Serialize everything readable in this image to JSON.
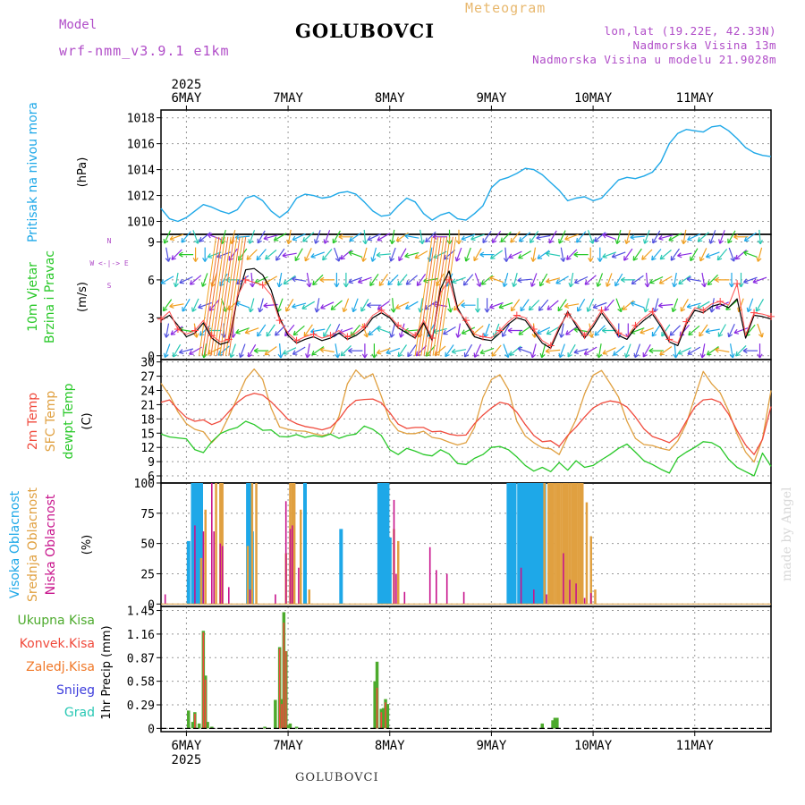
{
  "header": {
    "model_label": "Model",
    "model_run": "wrf-nmm_v3.9.1 e1km",
    "station": "GOLUBOVCI",
    "meteogram": "Meteogram",
    "coords": "lon,lat (19.22E, 42.33N)",
    "altitude": "Nadmorska Visina 13m",
    "model_altitude": "Nadmorska Visina u modelu 21.9028m"
  },
  "footer": {
    "station": "GOLUBOVCI",
    "made_by": "made by Angel"
  },
  "axis": {
    "year": "2025",
    "days": [
      "6MAY",
      "7MAY",
      "8MAY",
      "9MAY",
      "10MAY",
      "11MAY"
    ]
  },
  "colors": {
    "pressure": "#1ea8e8",
    "temp2m": "#f04a3c",
    "sfc_temp": "#e0a040",
    "dewpt": "#28c828",
    "high_cloud": "#1ea8e8",
    "mid_cloud": "#e0a040",
    "low_cloud": "#c8148c",
    "total_precip": "#4caa2c",
    "conv_precip": "#f04a3c",
    "frozen_precip": "#f07828",
    "snow": "#3c3cdc",
    "graupel": "#28c8b4",
    "wind_speed": "#000000"
  },
  "chart_data": [
    {
      "type": "line",
      "panel": "pressure",
      "ylabel_lines": [
        "Pritisak na nivou mora"
      ],
      "unit": "(hPa)",
      "ylim": [
        1009,
        1018.6
      ],
      "yticks": [
        "1010",
        "1012",
        "1014",
        "1016",
        "1018"
      ],
      "ytick_values": [
        1010,
        1012,
        1014,
        1016,
        1018
      ],
      "x_hours": [
        0,
        2,
        4,
        6,
        8,
        10,
        12,
        14,
        16,
        18,
        20,
        22,
        24,
        26,
        28,
        30,
        32,
        34,
        36,
        38,
        40,
        42,
        44,
        46,
        48,
        50,
        52,
        54,
        56,
        58,
        60,
        62,
        64,
        66,
        68,
        70,
        72,
        74,
        76,
        78,
        80,
        82,
        84,
        86,
        88,
        90,
        92,
        94,
        96,
        98,
        100,
        102,
        104,
        106,
        108,
        110,
        112,
        114,
        116,
        118,
        120,
        122,
        124,
        126,
        128,
        130,
        132,
        134,
        136,
        138,
        140,
        142,
        144
      ],
      "series": [
        {
          "values": [
            1011.0,
            1010.2,
            1010.0,
            1010.3,
            1010.8,
            1011.3,
            1011.1,
            1010.8,
            1010.6,
            1010.9,
            1011.8,
            1012.0,
            1011.6,
            1010.8,
            1010.3,
            1010.8,
            1011.8,
            1012.1,
            1012.0,
            1011.8,
            1011.9,
            1012.2,
            1012.3,
            1012.1,
            1011.5,
            1010.8,
            1010.4,
            1010.5,
            1011.2,
            1011.8,
            1011.5,
            1010.6,
            1010.1,
            1010.5,
            1010.7,
            1010.2,
            1010.1,
            1010.6,
            1011.2,
            1012.6,
            1013.2,
            1013.4,
            1013.7,
            1014.1,
            1014.0,
            1013.6,
            1013.0,
            1012.4,
            1011.6,
            1011.8,
            1011.9,
            1011.6,
            1011.8,
            1012.5,
            1013.2,
            1013.4,
            1013.3,
            1013.5,
            1013.8,
            1014.6,
            1016.0,
            1016.8,
            1017.1,
            1017.0,
            1016.9,
            1017.3,
            1017.4,
            1017.0,
            1016.4,
            1015.7,
            1015.3,
            1015.1,
            1015.0
          ]
        }
      ]
    },
    {
      "type": "line",
      "panel": "wind",
      "ylabel_lines": [
        "10m Vjetar",
        "Brzina i Pravac"
      ],
      "unit": "(m/s)",
      "compass_lines": [
        "N",
        "W <-|-> E",
        "S"
      ],
      "ylim": [
        -0.3,
        9.6
      ],
      "yticks": [
        "0",
        "3",
        "6",
        "9"
      ],
      "ytick_values": [
        0,
        3,
        6,
        9
      ],
      "x_hours": [
        0,
        2,
        4,
        6,
        8,
        10,
        12,
        14,
        16,
        18,
        20,
        22,
        24,
        26,
        28,
        30,
        32,
        34,
        36,
        38,
        40,
        42,
        44,
        46,
        48,
        50,
        52,
        54,
        56,
        58,
        60,
        62,
        64,
        66,
        68,
        70,
        72,
        74,
        76,
        78,
        80,
        82,
        84,
        86,
        88,
        90,
        92,
        94,
        96,
        98,
        100,
        102,
        104,
        106,
        108,
        110,
        112,
        114,
        116,
        118,
        120,
        122,
        124,
        126,
        128,
        130,
        132,
        134,
        136,
        138,
        140,
        142,
        144
      ],
      "series": [
        {
          "values": [
            2.8,
            3.2,
            2.4,
            1.5,
            1.8,
            2.6,
            1.4,
            0.9,
            1.1,
            4.5,
            6.8,
            6.9,
            6.4,
            5.2,
            3.0,
            1.6,
            1.0,
            1.3,
            1.5,
            1.2,
            1.4,
            1.8,
            1.3,
            1.6,
            2.1,
            3.0,
            3.4,
            3.0,
            2.2,
            1.8,
            1.4,
            2.6,
            1.2,
            5.3,
            6.7,
            3.8,
            2.6,
            1.5,
            1.3,
            1.2,
            1.8,
            2.5,
            3.0,
            2.8,
            1.9,
            1.0,
            0.6,
            2.1,
            3.5,
            2.4,
            1.4,
            2.3,
            3.4,
            2.5,
            1.6,
            1.3,
            2.2,
            2.8,
            3.3,
            2.3,
            1.1,
            0.8,
            2.5,
            3.6,
            3.4,
            3.9,
            4.1,
            3.8,
            4.5,
            1.4,
            3.2,
            3.1,
            2.9
          ]
        },
        {
          "values": [
            2.9,
            3.5,
            2.1,
            1.7,
            2.0,
            2.8,
            1.6,
            1.1,
            1.3,
            4.7,
            6.0,
            5.8,
            5.6,
            4.8,
            2.8,
            1.8,
            1.2,
            1.5,
            1.7,
            1.4,
            1.6,
            2.0,
            1.5,
            1.8,
            2.3,
            3.2,
            3.6,
            3.1,
            2.4,
            2.0,
            1.6,
            2.8,
            1.4,
            5.0,
            6.0,
            3.6,
            2.8,
            1.7,
            1.5,
            1.4,
            2.0,
            2.7,
            3.2,
            3.0,
            2.1,
            1.2,
            0.8,
            2.3,
            3.3,
            2.6,
            1.6,
            2.5,
            3.6,
            2.7,
            1.8,
            1.5,
            2.4,
            3.0,
            3.5,
            2.5,
            1.3,
            1.0,
            2.7,
            3.8,
            3.6,
            4.1,
            4.3,
            4.0,
            5.7,
            1.6,
            3.4,
            3.3,
            3.1
          ]
        }
      ]
    },
    {
      "type": "line",
      "panel": "temperature",
      "ylabel_lines": [
        "2m Temp",
        "SFC Temp",
        "dewpt Temp"
      ],
      "unit": "(C)",
      "ylim": [
        4.5,
        30.5
      ],
      "yticks": [
        "6",
        "9",
        "12",
        "15",
        "18",
        "21",
        "24",
        "27",
        "30"
      ],
      "ytick_values": [
        6,
        9,
        12,
        15,
        18,
        21,
        24,
        27,
        30
      ],
      "x_hours": [
        0,
        2,
        4,
        6,
        8,
        10,
        12,
        14,
        16,
        18,
        20,
        22,
        24,
        26,
        28,
        30,
        32,
        34,
        36,
        38,
        40,
        42,
        44,
        46,
        48,
        50,
        52,
        54,
        56,
        58,
        60,
        62,
        64,
        66,
        68,
        70,
        72,
        74,
        76,
        78,
        80,
        82,
        84,
        86,
        88,
        90,
        92,
        94,
        96,
        98,
        100,
        102,
        104,
        106,
        108,
        110,
        112,
        114,
        116,
        118,
        120,
        122,
        124,
        126,
        128,
        130,
        132,
        134,
        136,
        138,
        140,
        142,
        144
      ],
      "series": [
        {
          "values": [
            21.5,
            22.0,
            20.0,
            18.3,
            17.5,
            17.8,
            16.8,
            17.5,
            19.5,
            21.5,
            22.8,
            23.4,
            23.0,
            21.6,
            19.8,
            17.9,
            17.0,
            16.4,
            16.1,
            15.7,
            16.2,
            17.9,
            20.4,
            21.9,
            22.1,
            22.2,
            21.4,
            19.3,
            16.9,
            16.0,
            16.2,
            16.2,
            15.3,
            15.4,
            14.8,
            14.5,
            14.6,
            17.0,
            18.8,
            20.3,
            21.5,
            21.1,
            19.4,
            16.8,
            14.5,
            13.2,
            13.4,
            12.2,
            14.5,
            16.3,
            18.4,
            20.3,
            21.3,
            21.8,
            21.5,
            20.5,
            18.4,
            15.9,
            14.3,
            13.7,
            13.0,
            14.4,
            17.5,
            20.5,
            22.0,
            22.2,
            21.5,
            19.0,
            15.5,
            12.5,
            10.5,
            13.7,
            20.6
          ]
        },
        {
          "values": [
            25.5,
            23.0,
            19.5,
            17.0,
            15.8,
            15.3,
            13.0,
            14.9,
            18.5,
            22.4,
            26.4,
            28.5,
            26.3,
            20.3,
            16.3,
            15.8,
            15.5,
            15.4,
            14.9,
            14.5,
            14.8,
            18.5,
            25.4,
            28.3,
            26.5,
            27.5,
            22.8,
            17.7,
            15.5,
            14.9,
            14.9,
            15.4,
            14.1,
            13.8,
            13.1,
            12.5,
            13.0,
            16.2,
            22.5,
            26.3,
            27.3,
            24.2,
            17.5,
            14.4,
            13.0,
            11.9,
            11.7,
            10.5,
            14.3,
            17.9,
            23.3,
            27.2,
            28.2,
            25.5,
            22.6,
            17.5,
            13.9,
            12.6,
            12.4,
            11.8,
            11.4,
            13.4,
            17.0,
            22.6,
            28.0,
            25.4,
            23.5,
            19.7,
            14.8,
            11.0,
            8.9,
            13.8,
            24.0
          ]
        },
        {
          "values": [
            14.8,
            14.2,
            14.0,
            13.8,
            11.5,
            10.9,
            13.2,
            14.9,
            15.7,
            16.2,
            17.5,
            16.8,
            15.6,
            15.7,
            14.3,
            14.2,
            14.7,
            14.1,
            14.5,
            14.2,
            14.8,
            13.9,
            14.5,
            14.8,
            16.5,
            15.8,
            14.5,
            11.5,
            10.5,
            11.8,
            11.2,
            10.5,
            10.2,
            11.5,
            10.6,
            8.6,
            8.4,
            9.7,
            10.5,
            12.0,
            12.2,
            11.5,
            10.0,
            8.2,
            7.0,
            7.8,
            6.9,
            8.8,
            7.2,
            9.2,
            7.8,
            8.2,
            9.4,
            10.5,
            11.8,
            12.7,
            11.0,
            9.2,
            8.4,
            7.4,
            6.6,
            9.8,
            11.0,
            12.0,
            13.2,
            13.0,
            12.0,
            9.5,
            7.8,
            6.9,
            6.0,
            10.8,
            8.0
          ]
        }
      ]
    },
    {
      "type": "bar",
      "panel": "clouds",
      "ylabel_lines": [
        "Visoka Oblacnost",
        "Srednja Oblacnost",
        "Niska Oblacnost"
      ],
      "unit": "(%)",
      "ylim": [
        -2,
        100
      ],
      "yticks": [
        "0",
        "25",
        "50",
        "75",
        "100"
      ],
      "ytick_values": [
        0,
        25,
        50,
        75,
        100
      ],
      "series": [
        {
          "name": "Visoka Oblacnost",
          "x_hours": [
            6.5,
            7.5,
            8.0,
            8.5,
            9.0,
            9.5,
            20.5,
            21.0,
            21.5,
            34.0,
            42.5,
            51.5,
            52.0,
            52.5,
            53.0,
            53.5,
            54.0,
            82.0,
            82.5,
            83.0,
            83.5,
            84.5,
            85.0,
            85.5,
            86.0,
            86.5,
            87.0,
            87.5,
            88.0,
            88.5,
            89.0,
            89.5,
            90.0,
            90.5
          ],
          "values": [
            52,
            100,
            100,
            100,
            100,
            100,
            100,
            100,
            60,
            100,
            62,
            100,
            100,
            100,
            100,
            100,
            55,
            100,
            100,
            100,
            100,
            100,
            100,
            100,
            100,
            100,
            100,
            100,
            100,
            100,
            100,
            100,
            100,
            100
          ]
        },
        {
          "name": "Srednja Oblacnost",
          "x_hours": [
            9.5,
            10.5,
            13.0,
            14.0,
            14.5,
            20.5,
            21.5,
            22.5,
            29.5,
            30.5,
            31.0,
            31.5,
            33.0,
            35.0,
            55.0,
            56.0,
            90.5,
            91.5,
            92.0,
            92.5,
            93.0,
            93.5,
            94.0,
            94.5,
            95.0,
            95.5,
            96.0,
            96.5,
            97.0,
            97.5,
            98.0,
            98.5,
            99.0,
            99.5,
            100.5,
            101.5,
            102.5
          ],
          "values": [
            38,
            78,
            100,
            100,
            100,
            48,
            100,
            100,
            42,
            100,
            100,
            100,
            78,
            12,
            62,
            52,
            100,
            100,
            100,
            100,
            100,
            100,
            100,
            100,
            100,
            100,
            100,
            100,
            100,
            100,
            100,
            100,
            100,
            100,
            84,
            56,
            12
          ]
        },
        {
          "name": "Niska Oblacnost",
          "x_hours": [
            1.0,
            8.0,
            10.0,
            12.0,
            12.5,
            14.0,
            14.5,
            16.0,
            21.0,
            27.0,
            29.5,
            30.5,
            31.0,
            32.5,
            55.0,
            55.5,
            57.5,
            63.5,
            65.0,
            67.5,
            71.5,
            85.0,
            88.0,
            91.0,
            95.0,
            96.5,
            98.0,
            100.0,
            101.5
          ],
          "values": [
            8,
            65,
            60,
            100,
            60,
            50,
            48,
            14,
            12,
            8,
            85,
            62,
            65,
            30,
            86,
            25,
            10,
            47,
            28,
            25,
            10,
            30,
            12,
            8,
            42,
            20,
            17,
            5,
            9
          ]
        }
      ]
    },
    {
      "type": "bar",
      "panel": "precipitation",
      "ylabel_lines": [
        "1hr Precip (mm)"
      ],
      "legend_labels": [
        "Ukupna Kisa",
        "Konvek.Kisa",
        "Zaledj.Kisa",
        "Snijeg",
        "Grad"
      ],
      "ylim": [
        -0.04,
        1.5
      ],
      "yticks": [
        "0",
        "0.29",
        "0.58",
        "0.87",
        "1.16",
        "1.45"
      ],
      "ytick_values": [
        0,
        0.29,
        0.58,
        0.87,
        1.16,
        1.45
      ],
      "series": [
        {
          "name": "Ukupna Kisa",
          "x_hours": [
            6.5,
            7.5,
            8.0,
            9.0,
            10.0,
            10.5,
            11.0,
            12.0,
            24.5,
            27.0,
            28.0,
            28.5,
            29.0,
            29.5,
            30.0,
            30.5,
            32.0,
            50.5,
            51.0,
            52.0,
            52.5,
            53.0,
            53.5,
            90.0,
            92.5,
            93.0,
            93.5
          ],
          "values": [
            0.22,
            0.08,
            0.2,
            0.06,
            1.2,
            0.65,
            0.08,
            0.02,
            0.02,
            0.35,
            1.0,
            0.36,
            1.43,
            0.95,
            0.04,
            0.06,
            0.02,
            0.58,
            0.82,
            0.24,
            0.25,
            0.36,
            0.3,
            0.06,
            0.1,
            0.13,
            0.13
          ]
        },
        {
          "name": "Konvek.Kisa",
          "x_hours": [
            8.0,
            10.0,
            10.5,
            28.0,
            28.5,
            29.0,
            29.5,
            51.0,
            52.0,
            53.0
          ],
          "values": [
            0.18,
            1.18,
            0.6,
            0.98,
            0.3,
            1.3,
            0.95,
            0.5,
            0.2,
            0.32
          ]
        }
      ]
    }
  ]
}
